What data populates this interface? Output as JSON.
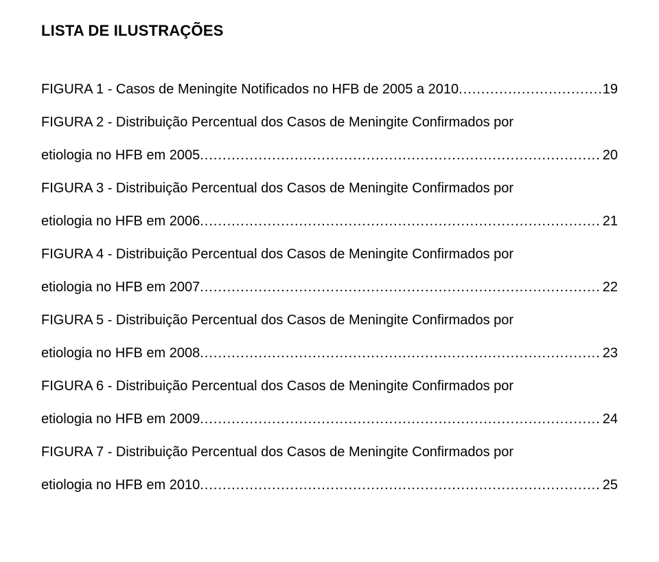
{
  "title": "LISTA DE ILUSTRAÇÕES",
  "entries": [
    {
      "single": true,
      "label": "FIGURA 1 - Casos de Meningite Notificados no HFB de 2005 a 2010",
      "page": "19"
    },
    {
      "single": false,
      "line1": "FIGURA 2 - Distribuição Percentual dos Casos de Meningite Confirmados por",
      "line2label": "etiologia no HFB em 2005",
      "page": "20"
    },
    {
      "single": false,
      "line1": "FIGURA 3 - Distribuição Percentual dos Casos de Meningite Confirmados por",
      "line2label": "etiologia no HFB em 2006",
      "page": "21"
    },
    {
      "single": false,
      "line1": "FIGURA 4 - Distribuição Percentual dos Casos de Meningite Confirmados por",
      "line2label": "etiologia no HFB em 2007",
      "page": "22"
    },
    {
      "single": false,
      "line1": "FIGURA 5 - Distribuição Percentual dos Casos de Meningite Confirmados por",
      "line2label": "etiologia no HFB em 2008",
      "page": "23"
    },
    {
      "single": false,
      "line1": "FIGURA 6 - Distribuição Percentual dos Casos de Meningite Confirmados por",
      "line2label": "etiologia no HFB em 2009",
      "page": "24"
    },
    {
      "single": false,
      "line1": "FIGURA 7 -  Distribuição Percentual dos Casos de Meningite Confirmados por",
      "line2label": "etiologia no HFB em 2010",
      "page": "25"
    }
  ]
}
